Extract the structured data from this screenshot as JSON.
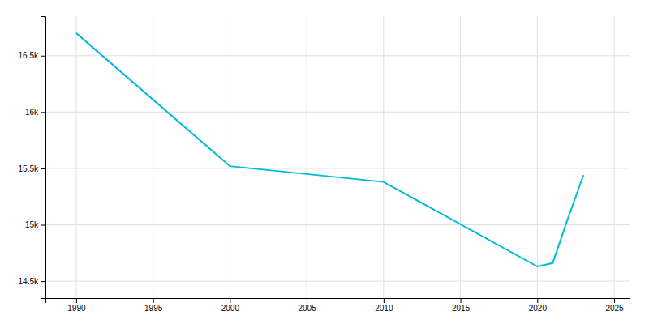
{
  "chart_data": {
    "type": "line",
    "x": [
      1990,
      2000,
      2005,
      2010,
      2020,
      2021,
      2022,
      2023
    ],
    "values": [
      16700,
      15520,
      15450,
      15380,
      14630,
      14660,
      15060,
      15440
    ],
    "color": "#00bcd4",
    "xlim": [
      1988,
      2026
    ],
    "ylim": [
      14350,
      16850
    ],
    "xticks": [
      1990,
      1995,
      2000,
      2005,
      2010,
      2015,
      2020,
      2025
    ],
    "yticks": [
      {
        "value": 14500,
        "label": "14.5k"
      },
      {
        "value": 15000,
        "label": "15k"
      },
      {
        "value": 15500,
        "label": "15.5k"
      },
      {
        "value": 16000,
        "label": "16k"
      },
      {
        "value": 16500,
        "label": "16.5k"
      }
    ],
    "grid": true
  }
}
